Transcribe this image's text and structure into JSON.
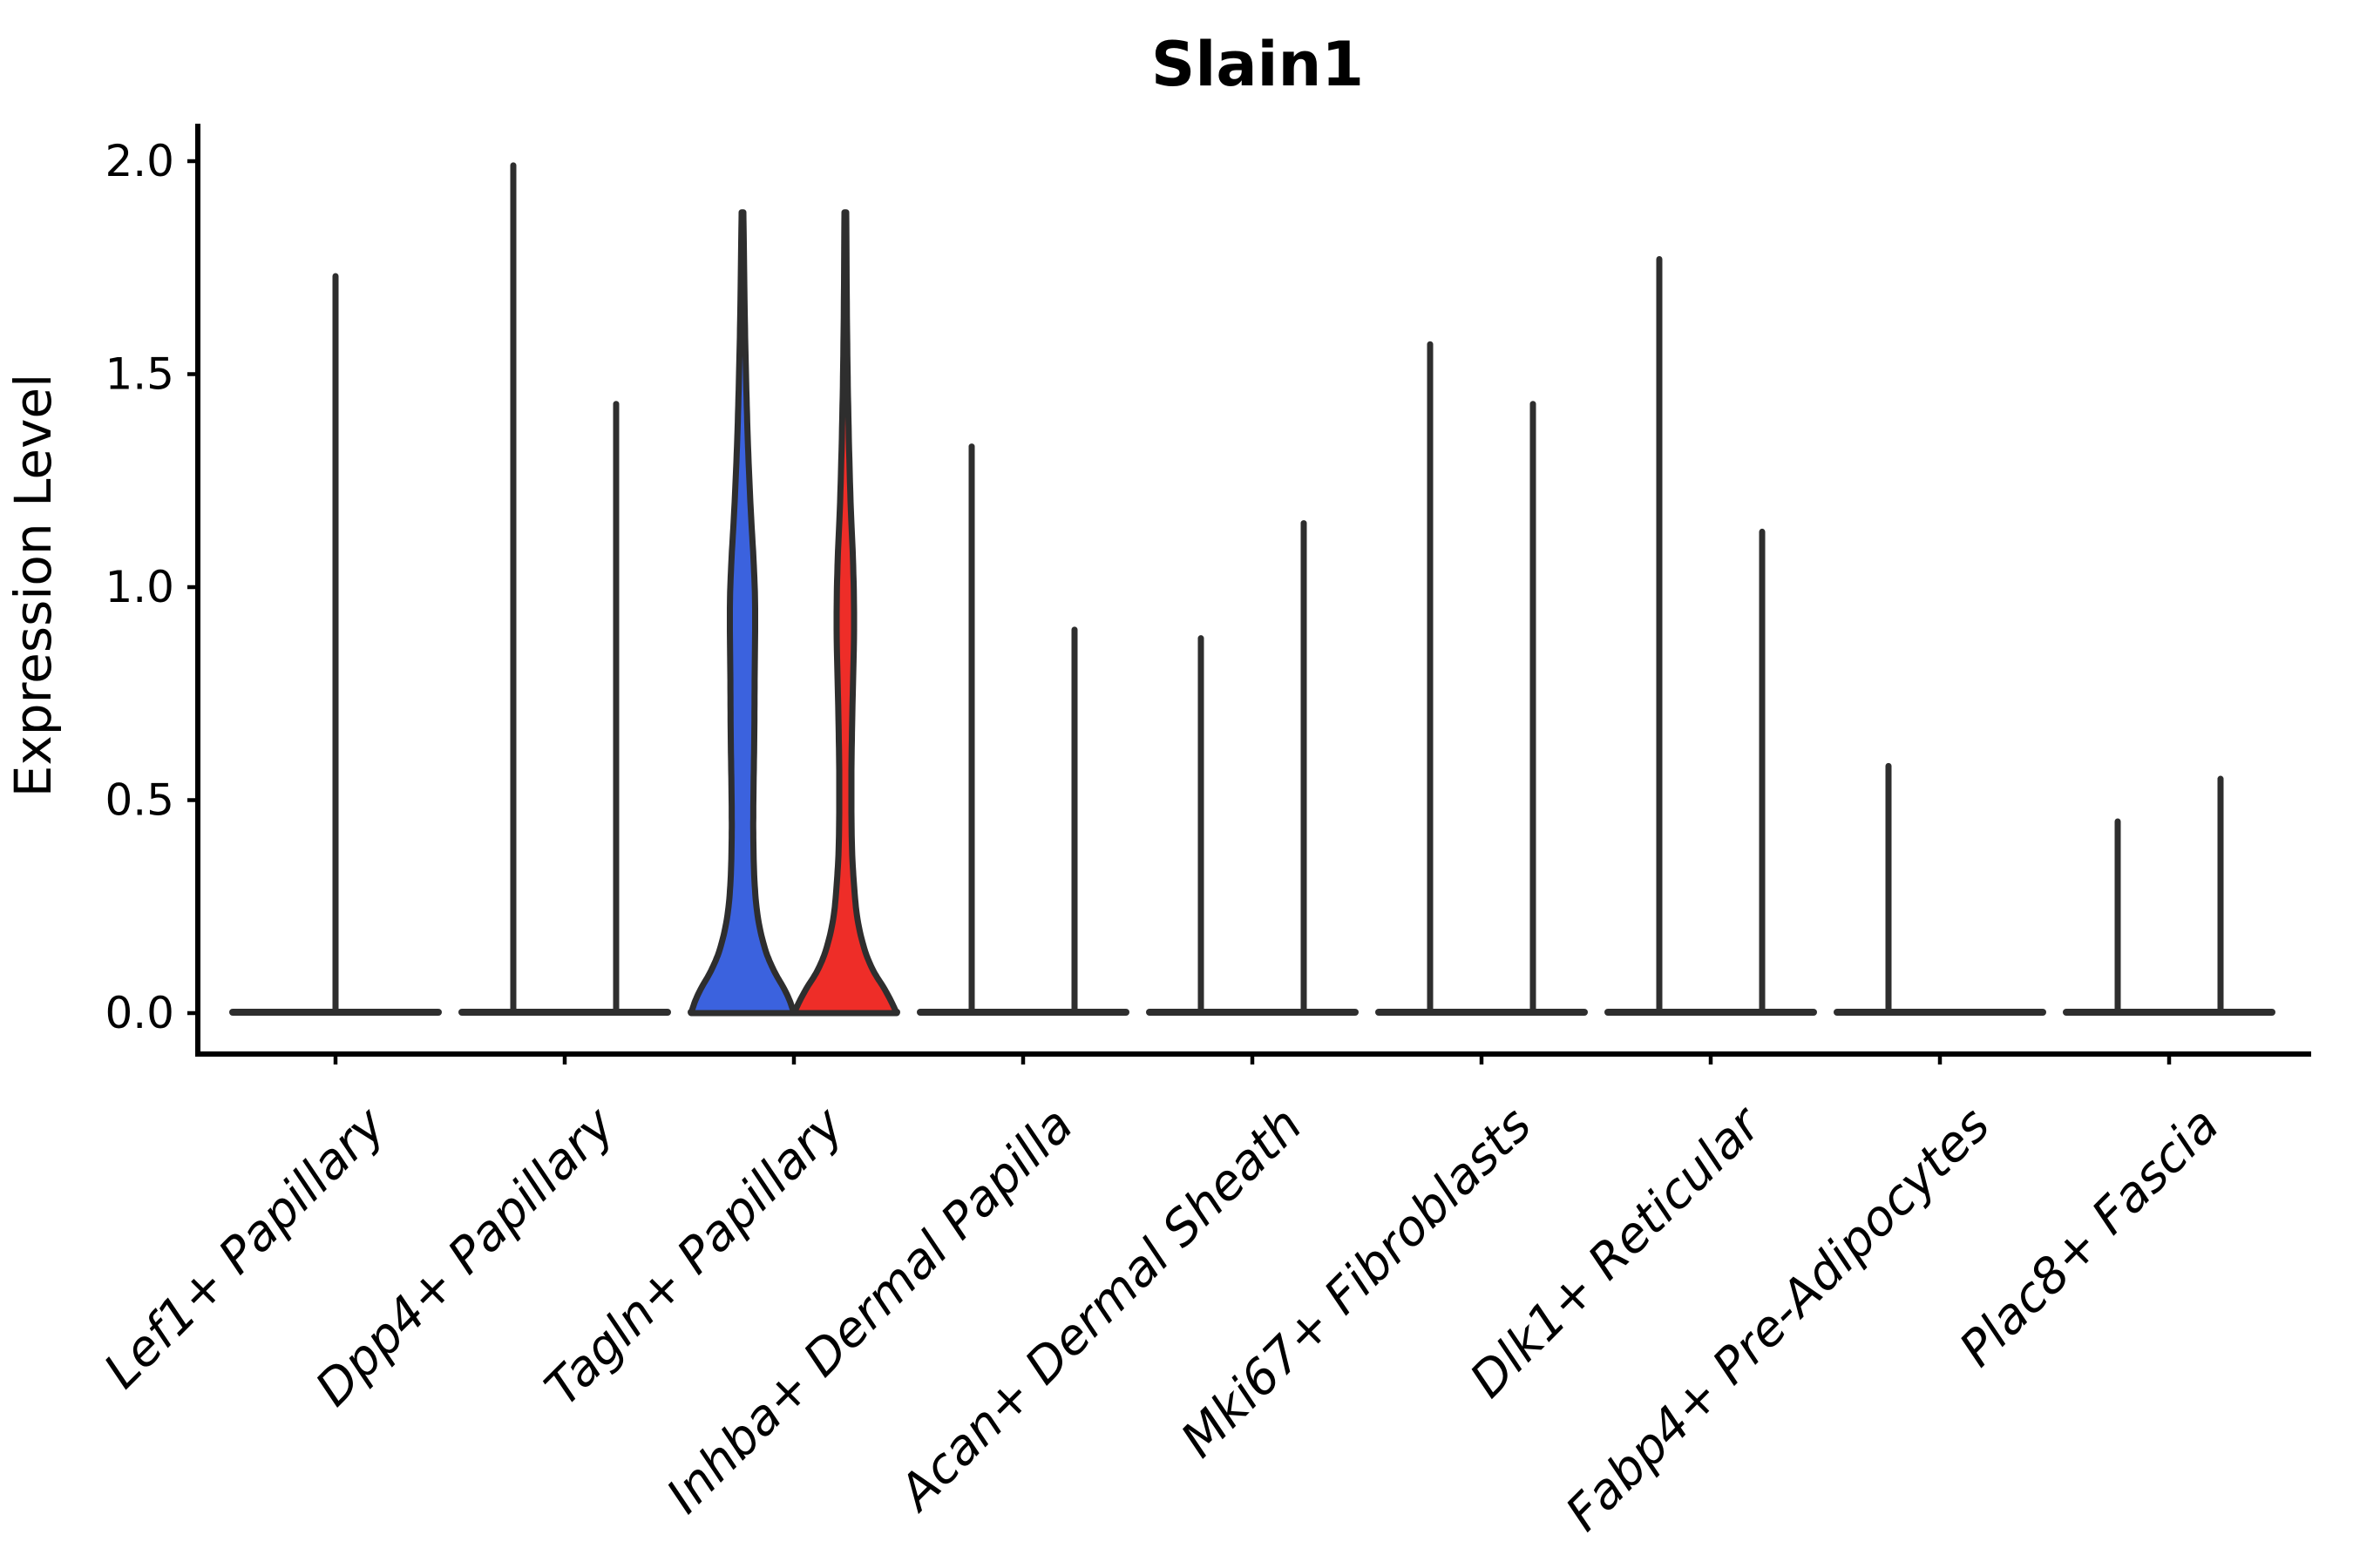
{
  "title": "Slain1",
  "y_axis": {
    "label": "Expression Level",
    "tick_labels": [
      "0.0",
      "0.5",
      "1.0",
      "1.5",
      "2.0"
    ]
  },
  "colors": {
    "group_left_fill": "#3b62de",
    "group_right_fill": "#ee2d28",
    "violin_outline": "#2e2e2e",
    "axis": "#000000"
  },
  "chart_data": {
    "type": "violin",
    "title": "Slain1",
    "xlabel": "",
    "ylabel": "Expression Level",
    "ylim": [
      -0.1,
      2.09
    ],
    "yticks": [
      0,
      0.5,
      1,
      1.5,
      2
    ],
    "grid": false,
    "legend": "none",
    "categories": [
      "Lef1+ Papillary",
      "Dpp4+ Papillary",
      "Tagln+ Papillary",
      "Inhba+ Dermal Papilla",
      "Acan+ Dermal Sheath",
      "Mki67+ Fibroblasts",
      "Dlk1+ Reticular",
      "Fabp4+ Pre-Adipocytes",
      "Plac8+ Fascia"
    ],
    "description": "Each category shows two side-by-side violins (left/right group). Most are collapsed at 0 with a thin spike up to the max expression value; Tagln+ Papillary shows filled blue (left) and red (right) violins. Profile entries are [expression_value, half_width_px].",
    "violins": [
      {
        "category": "Lef1+ Papillary",
        "components": [
          {
            "position": "center",
            "type": "spike",
            "max": 1.73
          }
        ]
      },
      {
        "category": "Dpp4+ Papillary",
        "components": [
          {
            "position": "left",
            "type": "spike",
            "max": 1.99
          },
          {
            "position": "right",
            "type": "spike",
            "max": 1.43
          }
        ]
      },
      {
        "category": "Tagln+ Papillary",
        "components": [
          {
            "position": "left",
            "type": "filled",
            "color_key": "group_left_fill",
            "max": 1.88,
            "profile": [
              [
                1.88,
                1
              ],
              [
                1.65,
                2.5
              ],
              [
                1.5,
                4
              ],
              [
                1.35,
                6
              ],
              [
                1.2,
                9
              ],
              [
                1.05,
                13
              ],
              [
                0.95,
                14.5
              ],
              [
                0.8,
                14
              ],
              [
                0.65,
                13.5
              ],
              [
                0.5,
                12.5
              ],
              [
                0.4,
                12.5
              ],
              [
                0.3,
                14
              ],
              [
                0.22,
                18
              ],
              [
                0.15,
                26
              ],
              [
                0.1,
                36
              ],
              [
                0.06,
                47
              ],
              [
                0.03,
                54
              ],
              [
                0.0,
                59
              ]
            ]
          },
          {
            "position": "right",
            "type": "filled",
            "color_key": "group_right_fill",
            "max": 1.88,
            "profile": [
              [
                1.88,
                1
              ],
              [
                1.6,
                2
              ],
              [
                1.4,
                3.5
              ],
              [
                1.2,
                6
              ],
              [
                1.05,
                9
              ],
              [
                0.9,
                10
              ],
              [
                0.7,
                8
              ],
              [
                0.55,
                7
              ],
              [
                0.4,
                7.5
              ],
              [
                0.3,
                10
              ],
              [
                0.22,
                14
              ],
              [
                0.15,
                22
              ],
              [
                0.1,
                32
              ],
              [
                0.06,
                44
              ],
              [
                0.03,
                52
              ],
              [
                0.0,
                59
              ]
            ]
          }
        ]
      },
      {
        "category": "Inhba+ Dermal Papilla",
        "components": [
          {
            "position": "left",
            "type": "spike",
            "max": 1.33
          },
          {
            "position": "right",
            "type": "spike",
            "max": 0.9
          }
        ]
      },
      {
        "category": "Acan+ Dermal Sheath",
        "components": [
          {
            "position": "left",
            "type": "spike",
            "max": 0.88
          },
          {
            "position": "right",
            "type": "spike",
            "max": 1.15
          }
        ]
      },
      {
        "category": "Mki67+ Fibroblasts",
        "components": [
          {
            "position": "left",
            "type": "spike",
            "max": 1.57
          },
          {
            "position": "right",
            "type": "spike",
            "max": 1.43
          }
        ]
      },
      {
        "category": "Dlk1+ Reticular",
        "components": [
          {
            "position": "left",
            "type": "spike",
            "max": 1.77
          },
          {
            "position": "right",
            "type": "spike",
            "max": 1.13
          }
        ]
      },
      {
        "category": "Fabp4+ Pre-Adipocytes",
        "components": [
          {
            "position": "left",
            "type": "spike",
            "max": 0.58
          }
        ]
      },
      {
        "category": "Plac8+ Fascia",
        "components": [
          {
            "position": "left",
            "type": "spike",
            "max": 0.45
          },
          {
            "position": "right",
            "type": "spike",
            "max": 0.55
          }
        ]
      }
    ]
  }
}
